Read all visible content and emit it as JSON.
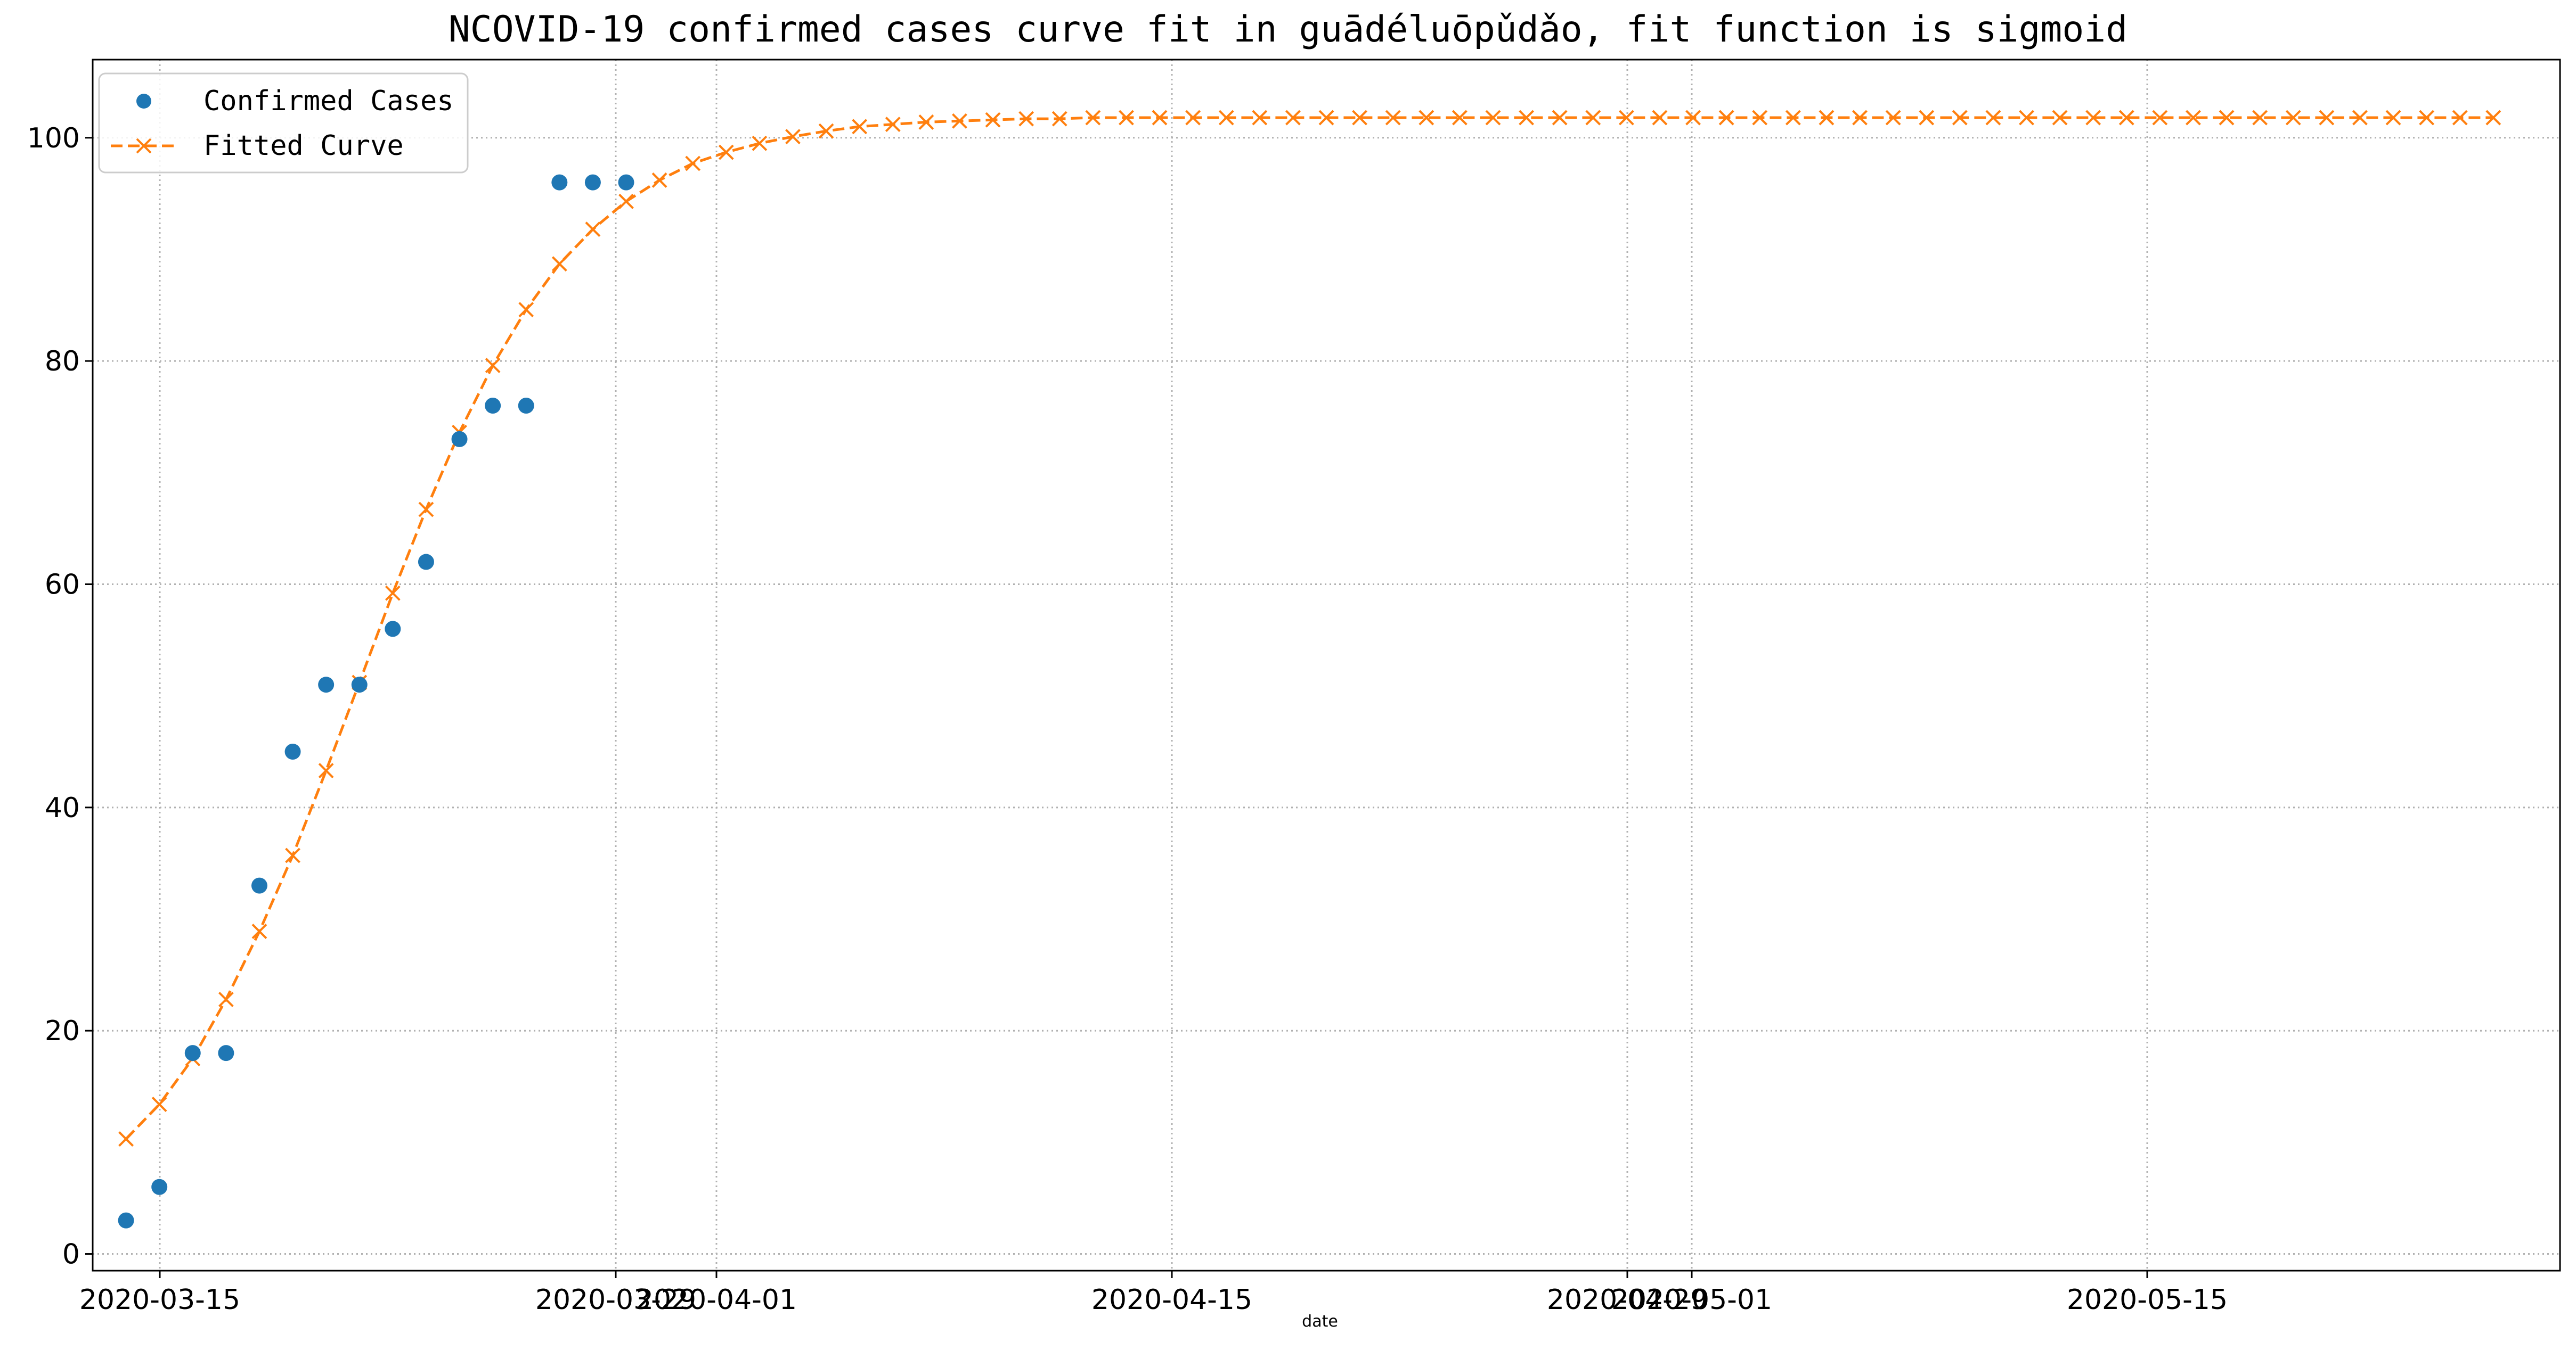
{
  "chart_data": {
    "type": "line",
    "title": "NCOVID-19 confirmed cases curve fit in guādéluōpǔdǎo, fit function is sigmoid",
    "xlabel": "date",
    "ylabel": "",
    "x_tick_labels": [
      "2020-03-15",
      "2020-03-29",
      "2020-04-01",
      "2020-04-15",
      "2020-04-29",
      "2020-05-01",
      "2020-05-15"
    ],
    "x_ticks_dates": [
      "2020-03-15",
      "2020-03-29",
      "2020-04-01",
      "2020-04-15",
      "2020-04-29",
      "2020-05-01",
      "2020-05-15"
    ],
    "y_ticks": [
      0,
      20,
      40,
      60,
      80,
      100
    ],
    "xlim": [
      "2020-03-15",
      "2020-05-28"
    ],
    "ylim": [
      -1.5,
      107
    ],
    "grid": true,
    "legend_position": "top-left",
    "series": [
      {
        "name": "Confirmed Cases",
        "style": "markers",
        "marker": "circle",
        "color": "#1f77b4",
        "x": [
          "2020-03-16",
          "2020-03-17",
          "2020-03-18",
          "2020-03-19",
          "2020-03-20",
          "2020-03-21",
          "2020-03-22",
          "2020-03-23",
          "2020-03-24",
          "2020-03-25",
          "2020-03-26",
          "2020-03-27",
          "2020-03-28",
          "2020-03-29",
          "2020-03-30",
          "2020-03-31"
        ],
        "values": [
          3,
          6,
          18,
          18,
          33,
          45,
          51,
          51,
          56,
          62,
          73,
          76,
          76,
          96,
          96,
          96
        ]
      },
      {
        "name": "Fitted Curve",
        "style": "dashed-line-x-markers",
        "marker": "x",
        "color": "#ff7f0e",
        "x_start": "2020-03-16",
        "x_step_days": 1,
        "values": [
          10.3,
          13.4,
          17.5,
          22.8,
          28.9,
          35.7,
          43.3,
          51.2,
          59.2,
          66.7,
          73.6,
          79.6,
          84.6,
          88.7,
          91.8,
          94.3,
          96.2,
          97.7,
          98.7,
          99.5,
          100.1,
          100.6,
          101.0,
          101.2,
          101.4,
          101.5,
          101.6,
          101.7,
          101.7,
          101.8,
          101.8,
          101.8,
          101.8,
          101.8,
          101.8,
          101.8,
          101.8,
          101.8,
          101.8,
          101.8,
          101.8,
          101.8,
          101.8,
          101.8,
          101.8,
          101.8,
          101.8,
          101.8,
          101.8,
          101.8,
          101.8,
          101.8,
          101.8,
          101.8,
          101.8,
          101.8,
          101.8,
          101.8,
          101.8,
          101.8,
          101.8,
          101.8,
          101.8,
          101.8,
          101.8,
          101.8,
          101.8,
          101.8,
          101.8,
          101.8,
          101.8,
          101.8
        ]
      }
    ]
  }
}
